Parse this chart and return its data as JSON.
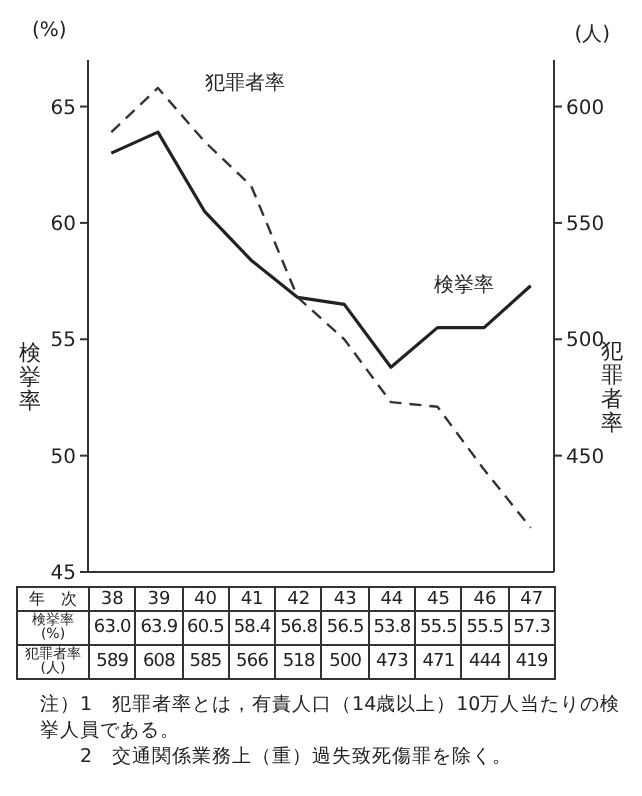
{
  "chart_data": {
    "type": "line",
    "xlabel": "年　次",
    "ylabel": "検挙率",
    "y2label": "犯罪者率",
    "categories": [
      "38",
      "39",
      "40",
      "41",
      "42",
      "43",
      "44",
      "45",
      "46",
      "47"
    ],
    "series": [
      {
        "name": "検挙率",
        "color": "#222222",
        "line_style": "solid",
        "values": [
          63.0,
          63.9,
          60.5,
          58.4,
          56.8,
          56.5,
          53.8,
          55.5,
          55.5,
          57.3
        ],
        "value_labels": [
          "63.0",
          "63.9",
          "60.5",
          "58.4",
          "56.8",
          "56.5",
          "53.8",
          "55.5",
          "55.5",
          "57.3"
        ]
      },
      {
        "name": "犯罪者率",
        "color": "#333333",
        "line_style": "dashed",
        "axis": "y2",
        "values": [
          589,
          608,
          585,
          566,
          518,
          500,
          473,
          471,
          444,
          419
        ],
        "value_labels": [
          "589",
          "608",
          "585",
          "566",
          "518",
          "500",
          "473",
          "471",
          "444",
          "419"
        ]
      }
    ],
    "ylim": [
      45,
      67
    ],
    "yticks": [
      45,
      50,
      55,
      60,
      65
    ],
    "y2lim": [
      400,
      620
    ],
    "y2ticks": [
      450,
      500,
      550,
      600
    ],
    "marker": "none",
    "annotations": [
      "(%)",
      "(人)",
      "注）1　犯罪者率とは，有責人口（14歳以上）10万人当たりの検挙人員である。",
      "2　交通関係業務上（重）過失致死傷罪を除く。"
    ]
  }
}
